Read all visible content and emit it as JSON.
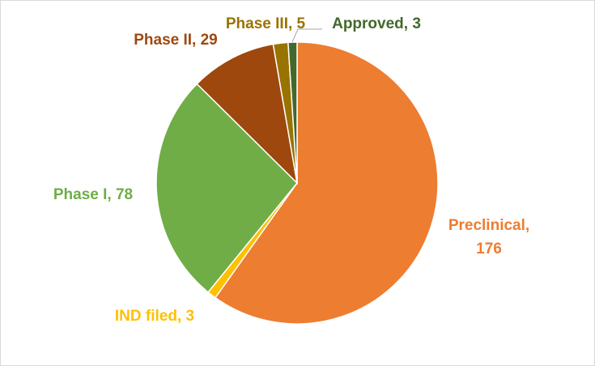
{
  "chart_data": {
    "type": "pie",
    "title": "",
    "start": "top",
    "direction": "clockwise",
    "legend": "none",
    "slices": [
      {
        "label": "Preclinical",
        "value": 176,
        "color": "#ed7d31",
        "label_lines": [
          "Preclinical,",
          "176"
        ],
        "label_color": "#ed7d31"
      },
      {
        "label": "IND filed",
        "value": 3,
        "color": "#ffc000",
        "label_lines": [
          "IND filed, 3"
        ],
        "label_color": "#ffc000"
      },
      {
        "label": "Phase I",
        "value": 78,
        "color": "#70ad47",
        "label_lines": [
          "Phase I, 78"
        ],
        "label_color": "#70ad47"
      },
      {
        "label": "Phase II",
        "value": 29,
        "color": "#9e480e",
        "label_lines": [
          "Phase II, 29"
        ],
        "label_color": "#9e480e"
      },
      {
        "label": "Phase III",
        "value": 5,
        "color": "#997300",
        "label_lines": [
          "Phase III, 5"
        ],
        "label_color": "#997300"
      },
      {
        "label": "Approved",
        "value": 3,
        "color": "#43682b",
        "label_lines": [
          "Approved, 3"
        ],
        "label_color": "#43682b"
      }
    ]
  }
}
